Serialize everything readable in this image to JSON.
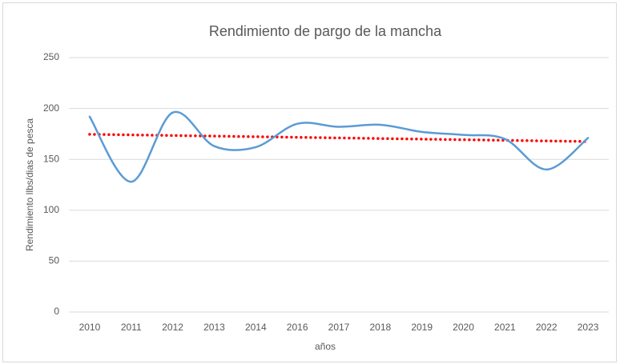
{
  "chart_data": {
    "type": "line",
    "title": "Rendimiento de pargo de la mancha",
    "x_label": "años",
    "y_label": "Rendimiento llbs/dias de pesca",
    "categories": [
      "2010",
      "2011",
      "2012",
      "2013",
      "2014",
      "2016",
      "2017",
      "2018",
      "2019",
      "2020",
      "2021",
      "2022",
      "2023"
    ],
    "values": [
      192,
      128,
      196,
      163,
      162,
      185,
      182,
      184,
      177,
      174,
      170,
      140,
      171
    ],
    "color": "#5b9bd5",
    "smooth": true,
    "trendline": "linear",
    "trendline_color": "#ff0000",
    "ylim": [
      0,
      250
    ],
    "yticks": [
      0,
      50,
      100,
      150,
      200,
      250
    ],
    "grid": true
  }
}
